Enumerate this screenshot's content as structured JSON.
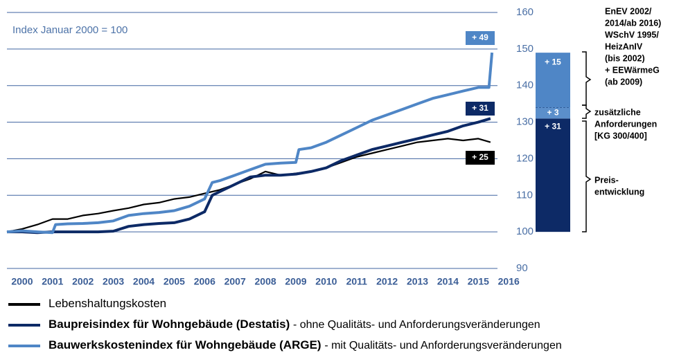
{
  "chart_data": {
    "type": "line",
    "subtitle": "Index Januar 2000 = 100",
    "xlim": [
      2000,
      2016.7
    ],
    "xticks": [
      {
        "value": 2000.5,
        "label": "2000"
      },
      {
        "value": 2001.5,
        "label": "2001"
      },
      {
        "value": 2002.5,
        "label": "2002"
      },
      {
        "value": 2003.5,
        "label": "2003"
      },
      {
        "value": 2004.5,
        "label": "2004"
      },
      {
        "value": 2005.5,
        "label": "2005"
      },
      {
        "value": 2006.5,
        "label": "2006"
      },
      {
        "value": 2007.5,
        "label": "2007"
      },
      {
        "value": 2008.5,
        "label": "2008"
      },
      {
        "value": 2009.5,
        "label": "2009"
      },
      {
        "value": 2010.5,
        "label": "2010"
      },
      {
        "value": 2011.5,
        "label": "2011"
      },
      {
        "value": 2012.5,
        "label": "2012"
      },
      {
        "value": 2013.5,
        "label": "2013"
      },
      {
        "value": 2014.5,
        "label": "2014"
      },
      {
        "value": 2015.5,
        "label": "2015"
      },
      {
        "value": 2016.5,
        "label": "2016"
      }
    ],
    "ylim": [
      90,
      160
    ],
    "yticks": [
      90,
      100,
      110,
      120,
      130,
      140,
      150,
      160
    ],
    "grid": true,
    "series": [
      {
        "name": "Lebenshaltungskosten",
        "color": "#000000",
        "x": [
          2000,
          2000.5,
          2001,
          2001.5,
          2002,
          2002.5,
          2003,
          2003.5,
          2004,
          2004.5,
          2005,
          2005.5,
          2006,
          2006.5,
          2007,
          2007.5,
          2008,
          2008.5,
          2009,
          2009.5,
          2010,
          2010.5,
          2011,
          2011.5,
          2012,
          2012.5,
          2013,
          2013.5,
          2014,
          2014.5,
          2015,
          2015.5,
          2015.9
        ],
        "values": [
          100,
          100.8,
          102,
          103.5,
          103.5,
          104.5,
          105,
          105.8,
          106.5,
          107.5,
          108,
          109,
          109.5,
          110.5,
          111.5,
          113,
          114.5,
          116.5,
          115.5,
          116,
          116.5,
          117.5,
          119,
          120.5,
          121.5,
          122.5,
          123.5,
          124.5,
          125,
          125.5,
          125,
          125.5,
          124.5
        ]
      },
      {
        "name": "Baupreisindex für Wohngebäude (Destatis)",
        "note": "- ohne Qualitäts- und Anforderungsveränderungen",
        "color": "#0d2a66",
        "x": [
          2000,
          2000.5,
          2001,
          2001.5,
          2002,
          2002.5,
          2003,
          2003.5,
          2004,
          2004.5,
          2005,
          2005.5,
          2006,
          2006.5,
          2006.75,
          2007,
          2007.5,
          2008,
          2008.5,
          2009,
          2009.5,
          2010,
          2010.5,
          2011,
          2011.5,
          2012,
          2012.5,
          2013,
          2013.5,
          2014,
          2014.5,
          2015,
          2015.5,
          2015.9
        ],
        "values": [
          100,
          100,
          99.8,
          100,
          100,
          100,
          100,
          100.2,
          101.5,
          102,
          102.3,
          102.5,
          103.5,
          105.5,
          110,
          111,
          113,
          115,
          115.5,
          115.5,
          115.8,
          116.5,
          117.5,
          119.5,
          121,
          122.5,
          123.5,
          124.5,
          125.5,
          126.5,
          127.5,
          129,
          130,
          131
        ]
      },
      {
        "name": "Bauwerkskostenindex für Wohngebäude (ARGE)",
        "note": "- mit Qualitäts- und Anforderungsveränderungen",
        "color": "#4f86c6",
        "x": [
          2000,
          2000.5,
          2001,
          2001.5,
          2001.6,
          2002,
          2002.5,
          2003,
          2003.5,
          2004,
          2004.5,
          2005,
          2005.5,
          2006,
          2006.5,
          2006.75,
          2007,
          2007.5,
          2008,
          2008.5,
          2009,
          2009.5,
          2009.6,
          2010,
          2010.5,
          2011,
          2011.5,
          2012,
          2012.5,
          2013,
          2013.5,
          2014,
          2014.5,
          2015,
          2015.5,
          2015.85,
          2015.95
        ],
        "values": [
          100,
          100.3,
          100,
          99.8,
          102,
          102.2,
          102.3,
          102.5,
          103,
          104.5,
          105,
          105.3,
          105.8,
          107,
          109,
          113.5,
          114,
          115.5,
          117,
          118.5,
          118.8,
          119,
          122.5,
          123,
          124.5,
          126.5,
          128.5,
          130.5,
          132,
          133.5,
          135,
          136.5,
          137.5,
          138.5,
          139.5,
          139.5,
          149
        ]
      }
    ],
    "end_labels": [
      {
        "text": "+ 49",
        "color": "#4f86c6"
      },
      {
        "text": "+ 31",
        "color": "#0d2a66"
      },
      {
        "text": "+ 25",
        "color": "#000000"
      }
    ],
    "stack": {
      "base": 100,
      "values": [
        31,
        3,
        15
      ],
      "value_labels": [
        "+ 31",
        "+ 3",
        "+ 15"
      ],
      "colors": [
        "#0d2a66",
        "#5b8fcb",
        "#4f86c6"
      ]
    },
    "brackets": [
      [
        "EnEV 2002/",
        "2014/ab 2016)",
        "WSchV 1995/",
        "HeizAnIV",
        "(bis 2002)",
        "+ EEWärmeG",
        "(ab 2009)"
      ],
      [
        "zusätzliche",
        "Anforderungen",
        "[KG 300/400]"
      ],
      [
        "Preis-",
        "entwicklung"
      ]
    ]
  }
}
